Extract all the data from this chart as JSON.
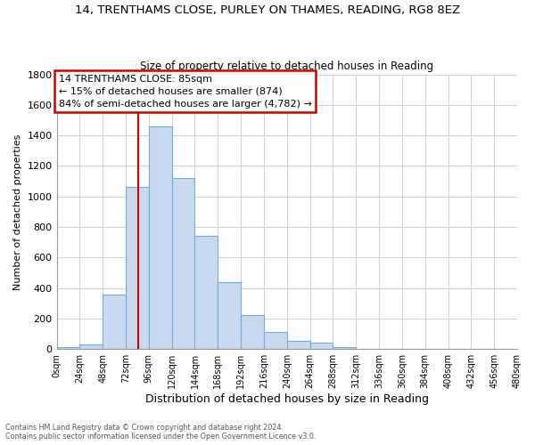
{
  "title_line1": "14, TRENTHAMS CLOSE, PURLEY ON THAMES, READING, RG8 8EZ",
  "title_line2": "Size of property relative to detached houses in Reading",
  "xlabel": "Distribution of detached houses by size in Reading",
  "ylabel": "Number of detached properties",
  "bar_color": "#c9d9ef",
  "bar_edge_color": "#6baed6",
  "bins_left": [
    0,
    24,
    48,
    72,
    96,
    120,
    144,
    168,
    192,
    216,
    240,
    264,
    288,
    312,
    336,
    360,
    384,
    408,
    432,
    456
  ],
  "bin_width": 24,
  "bar_heights": [
    15,
    30,
    355,
    1060,
    1460,
    1120,
    740,
    440,
    225,
    110,
    55,
    40,
    15,
    0,
    0,
    0,
    0,
    0,
    0,
    0
  ],
  "x_tick_labels": [
    "0sqm",
    "24sqm",
    "48sqm",
    "72sqm",
    "96sqm",
    "120sqm",
    "144sqm",
    "168sqm",
    "192sqm",
    "216sqm",
    "240sqm",
    "264sqm",
    "288sqm",
    "312sqm",
    "336sqm",
    "360sqm",
    "384sqm",
    "408sqm",
    "432sqm",
    "456sqm",
    "480sqm"
  ],
  "ylim": [
    0,
    1800
  ],
  "yticks": [
    0,
    200,
    400,
    600,
    800,
    1000,
    1200,
    1400,
    1600,
    1800
  ],
  "property_line_x": 85,
  "annotation_title": "14 TRENTHAMS CLOSE: 85sqm",
  "annotation_line1": "← 15% of detached houses are smaller (874)",
  "annotation_line2": "84% of semi-detached houses are larger (4,782) →",
  "annotation_box_color": "#ffffff",
  "annotation_box_edge_color": "#cc0000",
  "property_line_color": "#cc0000",
  "footer_line1": "Contains HM Land Registry data © Crown copyright and database right 2024.",
  "footer_line2": "Contains public sector information licensed under the Open Government Licence v3.0.",
  "bg_color": "#ffffff",
  "grid_color": "#d0d0d0"
}
